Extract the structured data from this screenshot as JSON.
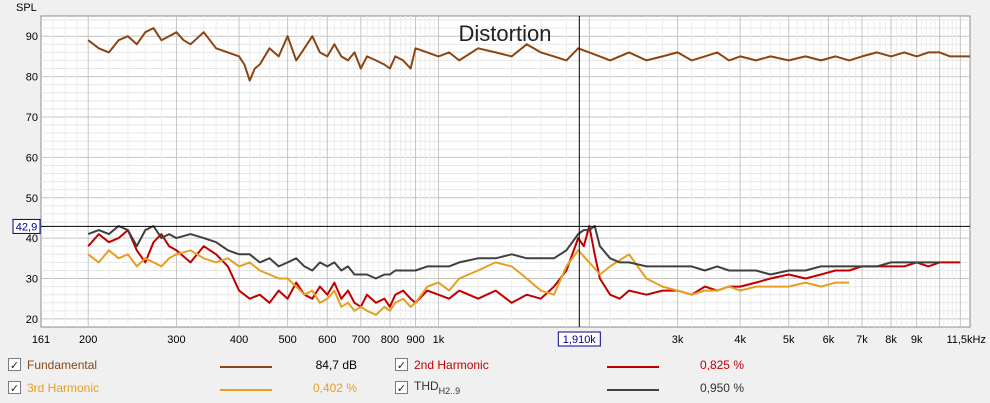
{
  "chart_data": {
    "type": "line",
    "title": "Distortion",
    "ylabel": "SPL",
    "xscale": "log",
    "xlim": [
      161,
      11500
    ],
    "ylim": [
      18,
      95
    ],
    "grid": true,
    "yticks": [
      20,
      30,
      40,
      50,
      60,
      70,
      80,
      90
    ],
    "xtick_labels": [
      {
        "x": 161,
        "label": "161"
      },
      {
        "x": 200,
        "label": "200"
      },
      {
        "x": 300,
        "label": "300"
      },
      {
        "x": 400,
        "label": "400"
      },
      {
        "x": 500,
        "label": "500"
      },
      {
        "x": 600,
        "label": "600"
      },
      {
        "x": 700,
        "label": "700"
      },
      {
        "x": 800,
        "label": "800"
      },
      {
        "x": 900,
        "label": "900"
      },
      {
        "x": 1000,
        "label": "1k"
      },
      {
        "x": 3000,
        "label": "3k"
      },
      {
        "x": 4000,
        "label": "4k"
      },
      {
        "x": 5000,
        "label": "5k"
      },
      {
        "x": 6000,
        "label": "6k"
      },
      {
        "x": 7000,
        "label": "7k"
      },
      {
        "x": 8000,
        "label": "8k"
      },
      {
        "x": 9000,
        "label": "9k"
      },
      {
        "x": 11500,
        "label": "11,5kHz"
      }
    ],
    "cursor": {
      "x": 1910,
      "y": 42.9,
      "x_label": "1,910k",
      "y_label": "42,9"
    },
    "series": [
      {
        "name": "Fundamental",
        "color": "#8b4513",
        "legend_value": "84,7 dB",
        "x": [
          200,
          210,
          220,
          230,
          240,
          250,
          260,
          270,
          280,
          290,
          300,
          310,
          320,
          340,
          360,
          380,
          400,
          410,
          420,
          430,
          440,
          460,
          480,
          500,
          520,
          540,
          560,
          580,
          600,
          620,
          640,
          660,
          680,
          700,
          720,
          750,
          780,
          800,
          820,
          850,
          880,
          900,
          950,
          1000,
          1050,
          1100,
          1200,
          1300,
          1400,
          1500,
          1600,
          1700,
          1800,
          1900,
          2000,
          2100,
          2200,
          2400,
          2600,
          2800,
          3000,
          3200,
          3400,
          3600,
          3800,
          4000,
          4300,
          4600,
          5000,
          5400,
          5800,
          6200,
          6600,
          7000,
          7500,
          8000,
          8500,
          9000,
          9500,
          10000,
          10500,
          11000,
          11500
        ],
        "y": [
          89,
          87,
          86,
          89,
          90,
          88,
          91,
          92,
          89,
          90,
          91,
          89,
          88,
          91,
          87,
          86,
          85,
          83,
          79,
          82,
          83,
          87,
          85,
          90,
          84,
          87,
          90,
          86,
          85,
          88,
          85,
          84,
          86,
          82,
          85,
          84,
          83,
          82,
          85,
          84,
          82,
          87,
          86,
          85,
          86,
          84,
          87,
          86,
          85,
          88,
          86,
          85,
          84,
          87,
          86,
          85,
          84,
          86,
          84,
          85,
          86,
          84,
          85,
          86,
          84,
          85,
          84,
          85,
          84,
          85,
          84,
          85,
          84,
          85,
          86,
          85,
          86,
          85,
          86,
          86,
          85,
          85,
          85
        ]
      },
      {
        "name": "2nd Harmonic",
        "color": "#c00000",
        "legend_value": "0,825 %",
        "x": [
          200,
          210,
          220,
          230,
          240,
          250,
          260,
          270,
          280,
          290,
          300,
          320,
          340,
          360,
          380,
          400,
          420,
          440,
          460,
          480,
          500,
          520,
          540,
          560,
          580,
          600,
          620,
          640,
          660,
          680,
          700,
          720,
          750,
          780,
          800,
          820,
          850,
          880,
          900,
          950,
          1000,
          1050,
          1100,
          1200,
          1300,
          1400,
          1500,
          1600,
          1700,
          1800,
          1900,
          1950,
          2000,
          2050,
          2100,
          2200,
          2300,
          2400,
          2600,
          2800,
          3000,
          3200,
          3400,
          3600,
          3800,
          4000,
          4300,
          4600,
          5000,
          5400,
          5800,
          6200,
          6600,
          7000,
          7500,
          8000,
          8500,
          9000,
          9500,
          10000,
          10500,
          11000
        ],
        "y": [
          38,
          41,
          39,
          40,
          42,
          37,
          34,
          39,
          41,
          38,
          37,
          34,
          38,
          36,
          33,
          27,
          25,
          26,
          24,
          27,
          25,
          29,
          26,
          25,
          28,
          26,
          29,
          25,
          27,
          24,
          23,
          26,
          24,
          25,
          23,
          26,
          27,
          25,
          24,
          27,
          26,
          25,
          27,
          25,
          27,
          24,
          26,
          25,
          28,
          32,
          40,
          38,
          43,
          36,
          30,
          26,
          25,
          27,
          26,
          27,
          27,
          26,
          28,
          27,
          28,
          28,
          29,
          30,
          31,
          30,
          31,
          32,
          32,
          33,
          33,
          33,
          33,
          34,
          33,
          34,
          34,
          34
        ]
      },
      {
        "name": "3rd Harmonic",
        "color": "#e6a020",
        "legend_value": "0,402 %",
        "x": [
          200,
          210,
          220,
          230,
          240,
          250,
          260,
          270,
          280,
          290,
          300,
          320,
          340,
          360,
          380,
          400,
          420,
          440,
          460,
          480,
          500,
          520,
          540,
          560,
          580,
          600,
          620,
          640,
          660,
          680,
          700,
          720,
          750,
          780,
          800,
          820,
          850,
          880,
          900,
          950,
          1000,
          1050,
          1100,
          1200,
          1300,
          1400,
          1500,
          1600,
          1700,
          1800,
          1900,
          2000,
          2100,
          2200,
          2400,
          2600,
          2800,
          3000,
          3200,
          3400,
          3600,
          3800,
          4000,
          4300,
          4600,
          5000,
          5400,
          5800,
          6200,
          6600
        ],
        "y": [
          36,
          34,
          37,
          35,
          36,
          33,
          35,
          34,
          33,
          35,
          36,
          37,
          35,
          34,
          35,
          33,
          34,
          32,
          31,
          30,
          30,
          28,
          26,
          27,
          24,
          25,
          27,
          23,
          24,
          22,
          23,
          22,
          21,
          23,
          22,
          24,
          25,
          23,
          24,
          28,
          29,
          27,
          30,
          32,
          34,
          33,
          30,
          27,
          26,
          33,
          37,
          34,
          31,
          33,
          36,
          30,
          28,
          27,
          26,
          27,
          27,
          28,
          27,
          28,
          28,
          28,
          29,
          28,
          29,
          29
        ]
      },
      {
        "name": "THD",
        "color": "#404040",
        "legend_value": "0,950 %",
        "x": [
          200,
          210,
          220,
          230,
          240,
          250,
          260,
          270,
          280,
          290,
          300,
          320,
          340,
          360,
          380,
          400,
          420,
          440,
          460,
          480,
          500,
          520,
          540,
          560,
          580,
          600,
          620,
          640,
          660,
          680,
          700,
          720,
          750,
          780,
          800,
          820,
          850,
          880,
          900,
          950,
          1000,
          1050,
          1100,
          1200,
          1300,
          1400,
          1500,
          1600,
          1700,
          1800,
          1900,
          1950,
          2000,
          2050,
          2100,
          2200,
          2300,
          2400,
          2600,
          2800,
          3000,
          3200,
          3400,
          3600,
          3800,
          4000,
          4300,
          4600,
          5000,
          5400,
          5800,
          6200,
          6600,
          7000,
          7500,
          8000,
          8500,
          9000,
          9500,
          10000
        ],
        "y": [
          41,
          42,
          41,
          43,
          42,
          38,
          42,
          43,
          40,
          41,
          40,
          41,
          40,
          39,
          37,
          36,
          36,
          34,
          35,
          33,
          34,
          35,
          33,
          32,
          34,
          33,
          34,
          32,
          33,
          31,
          31,
          31,
          30,
          31,
          31,
          32,
          32,
          32,
          32,
          33,
          33,
          33,
          34,
          35,
          35,
          36,
          35,
          35,
          35,
          37,
          41,
          42,
          42,
          43,
          38,
          35,
          34,
          34,
          33,
          33,
          33,
          33,
          32,
          33,
          32,
          32,
          32,
          31,
          32,
          32,
          33,
          33,
          33,
          33,
          33,
          34,
          34,
          34,
          34,
          34
        ]
      }
    ]
  },
  "legend": [
    {
      "name": "Fundamental",
      "value": "84,7 dB",
      "checked": "✓",
      "color": "#8b4513"
    },
    {
      "name": "2nd Harmonic",
      "value": "0,825 %",
      "checked": "✓",
      "color": "#c00000"
    },
    {
      "name": "3rd Harmonic",
      "value": "0,402 %",
      "checked": "✓",
      "color": "#e6a020"
    },
    {
      "name": "THD",
      "name_sub": "H2..9",
      "value": "0,950 %",
      "checked": "✓",
      "color": "#404040"
    }
  ]
}
